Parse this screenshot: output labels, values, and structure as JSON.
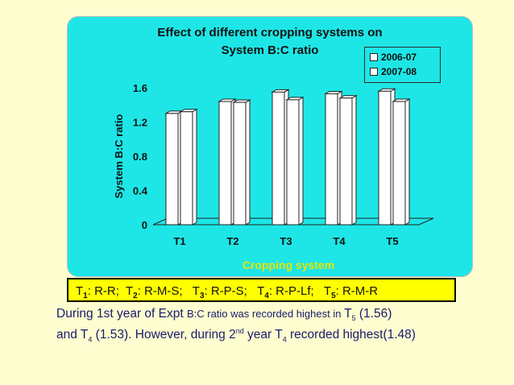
{
  "chart_data": {
    "type": "bar",
    "title_lines": [
      "Effect of different cropping systems on",
      "System B:C ratio"
    ],
    "xlabel": "Cropping system",
    "ylabel": "System B:C ratio",
    "categories": [
      "T1",
      "T2",
      "T3",
      "T4",
      "T5"
    ],
    "yticks": [
      "0",
      "0.4",
      "0.8",
      "1.2",
      "1.6"
    ],
    "ylim": [
      0,
      1.6
    ],
    "legend_position": "top-right",
    "series": [
      {
        "name": "2006-07",
        "values": [
          1.3,
          1.44,
          1.55,
          1.53,
          1.56
        ]
      },
      {
        "name": "2007-08",
        "values": [
          1.32,
          1.43,
          1.46,
          1.48,
          1.44
        ]
      }
    ]
  },
  "colors": {
    "panel": "#1ee6e6",
    "bar_fill": "#ffffff",
    "xlabel": "#e6e600",
    "caption_bg": "#ffff00",
    "page_bg": "#fdfdd0",
    "text_blue": "#1a1a6e"
  },
  "caption": {
    "items": [
      {
        "t": "T",
        "sub": "1",
        "text": ": R-R;"
      },
      {
        "t": "T",
        "sub": "2",
        "text": ": R-M-S;"
      },
      {
        "t": "T",
        "sub": "3",
        "text": ": R-P-S;"
      },
      {
        "t": "T",
        "sub": "4",
        "text": ": R-P-Lf;"
      },
      {
        "t": "T",
        "sub": "5",
        "text": ": R-M-R"
      }
    ]
  },
  "paragraph": {
    "l1a": "During 1st year of Expt ",
    "l1b": "B:C ratio was recorded highest in ",
    "l1c": "T",
    "l1c_sub": "5",
    "l1d": "  (1.56)",
    "l2a": "and T",
    "l2a_sub": "4",
    "l2b": " (1.53). However, during 2",
    "l2b_sup": "nd",
    "l2c": " year T",
    "l2c_sub": "4",
    "l2d": " recorded highest(1.48)"
  }
}
